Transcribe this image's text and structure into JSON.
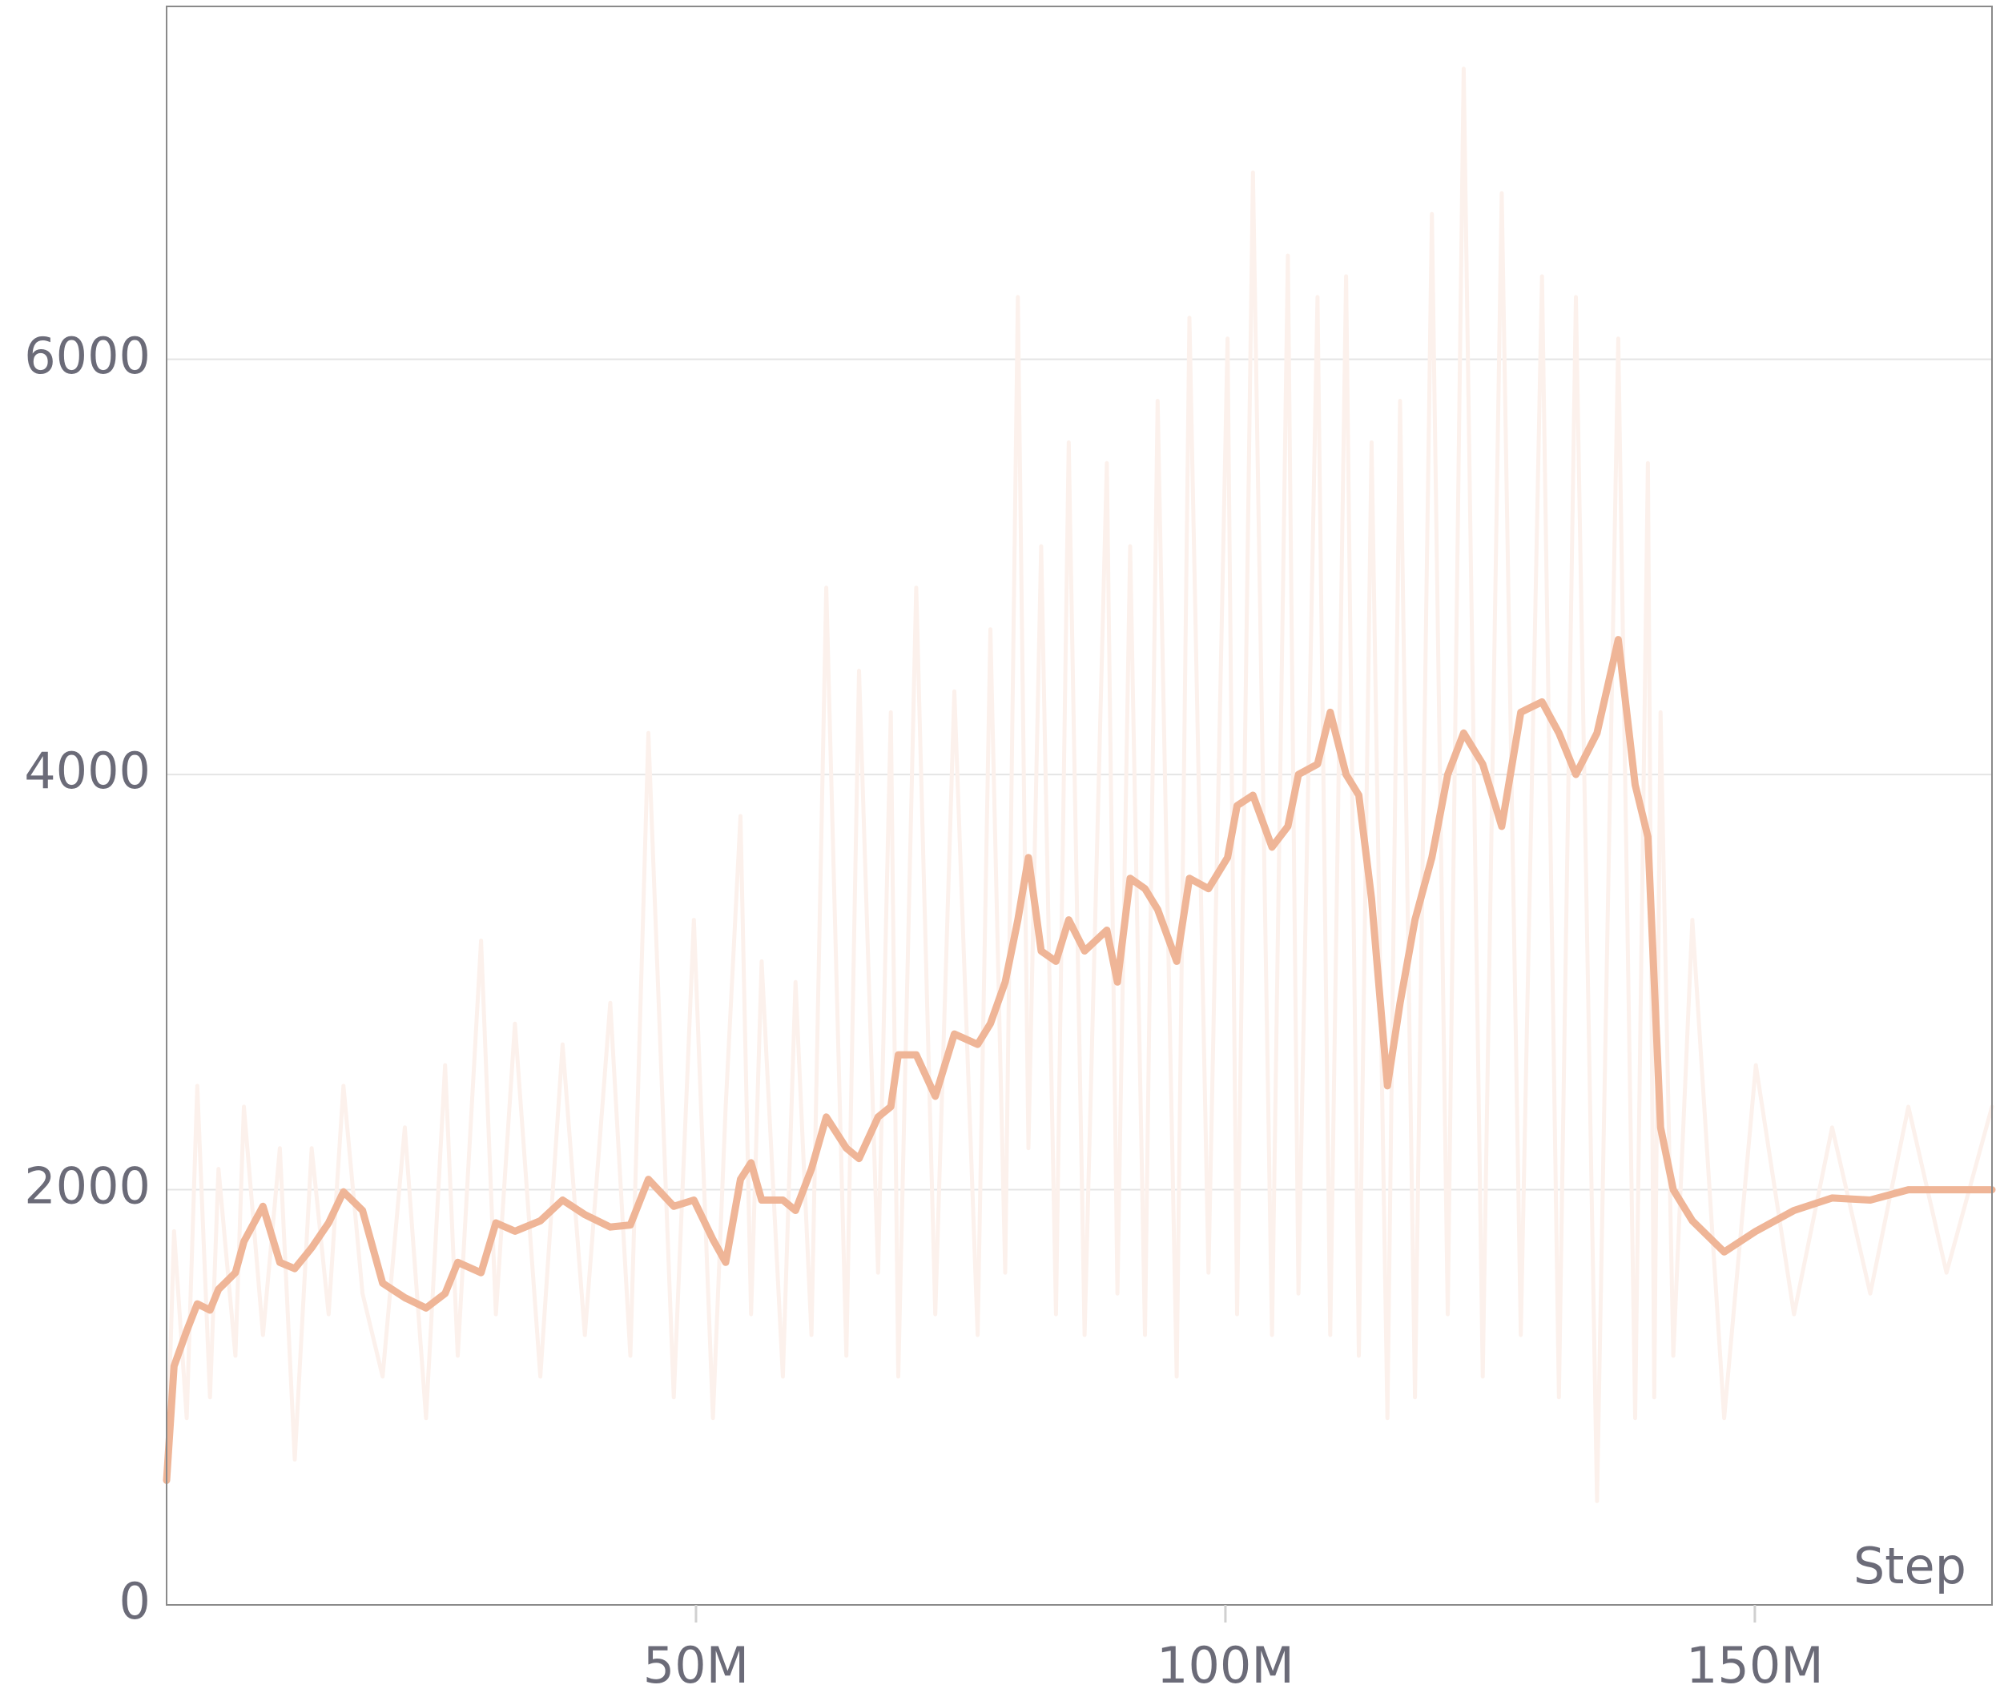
{
  "chart_data": {
    "type": "line",
    "xlabel": "Step",
    "x": [
      0,
      700000,
      1900000,
      2900000,
      4100000,
      4900000,
      6500000,
      7300000,
      9100000,
      10700000,
      12100000,
      13700000,
      15300000,
      16700000,
      18500000,
      20400000,
      22500000,
      24500000,
      26300000,
      27500000,
      29700000,
      31100000,
      32900000,
      35300000,
      37400000,
      39500000,
      41900000,
      43800000,
      45500000,
      47900000,
      49800000,
      51600000,
      52800000,
      54200000,
      55200000,
      56200000,
      58200000,
      59400000,
      60900000,
      62300000,
      64200000,
      65400000,
      67200000,
      68400000,
      69100000,
      70800000,
      72600000,
      74400000,
      76600000,
      77800000,
      79200000,
      80400000,
      81400000,
      82600000,
      84000000,
      85200000,
      86700000,
      88800000,
      89800000,
      91000000,
      92400000,
      93600000,
      95400000,
      96600000,
      98400000,
      100200000,
      101100000,
      102600000,
      104400000,
      105900000,
      106900000,
      108700000,
      109900000,
      111400000,
      112600000,
      113800000,
      115300000,
      116500000,
      117900000,
      119500000,
      121000000,
      122500000,
      124300000,
      126100000,
      127900000,
      129900000,
      131500000,
      133100000,
      135100000,
      137100000,
      138700000,
      139900000,
      140500000,
      141100000,
      142300000,
      144100000,
      147100000,
      150100000,
      153700000,
      157300000,
      160900000,
      164500000,
      168100000,
      172400000
    ],
    "series": [
      {
        "color": "#fcf1ec",
        "width": 5,
        "values": [
          600,
          1800,
          900,
          2500,
          1000,
          2100,
          1200,
          2400,
          1300,
          2200,
          700,
          2200,
          1400,
          2500,
          1500,
          1100,
          2300,
          900,
          2600,
          1200,
          3200,
          1400,
          2800,
          1100,
          2700,
          1300,
          2900,
          1200,
          4200,
          1000,
          3300,
          900,
          2400,
          3800,
          1400,
          3100,
          1100,
          3000,
          1300,
          4900,
          1200,
          4500,
          1600,
          4300,
          1100,
          4900,
          1400,
          4400,
          1300,
          4700,
          1600,
          6300,
          2200,
          5100,
          1400,
          5600,
          1300,
          5500,
          1500,
          5100,
          1300,
          5800,
          1100,
          6200,
          1600,
          6100,
          1400,
          6900,
          1300,
          6500,
          1500,
          6300,
          1300,
          6400,
          1200,
          5600,
          900,
          5800,
          1000,
          6700,
          1400,
          7400,
          1100,
          6800,
          1300,
          6400,
          1000,
          6300,
          500,
          6100,
          900,
          5500,
          1000,
          4300,
          1200,
          3300,
          900,
          2600,
          1400,
          2300,
          1500,
          2400,
          1600,
          2400
        ]
      },
      {
        "color": "#efb597",
        "width": 9,
        "values": [
          600,
          1150,
          1320,
          1450,
          1420,
          1520,
          1600,
          1750,
          1920,
          1650,
          1620,
          1720,
          1840,
          1990,
          1900,
          1550,
          1480,
          1430,
          1500,
          1650,
          1600,
          1840,
          1800,
          1850,
          1950,
          1880,
          1820,
          1830,
          2050,
          1920,
          1950,
          1760,
          1650,
          2050,
          2130,
          1950,
          1950,
          1900,
          2100,
          2350,
          2200,
          2150,
          2350,
          2400,
          2650,
          2650,
          2450,
          2750,
          2700,
          2800,
          3000,
          3300,
          3600,
          3150,
          3100,
          3300,
          3150,
          3250,
          3000,
          3500,
          3450,
          3350,
          3100,
          3500,
          3450,
          3600,
          3850,
          3900,
          3650,
          3750,
          4000,
          4050,
          4300,
          4000,
          3900,
          3400,
          2500,
          2900,
          3300,
          3600,
          4000,
          4200,
          4050,
          3750,
          4300,
          4350,
          4200,
          4000,
          4200,
          4650,
          3950,
          3700,
          3000,
          2300,
          2000,
          1850,
          1700,
          1800,
          1900,
          1960,
          1950,
          2000,
          2000,
          2000
        ]
      }
    ],
    "xlim": [
      0,
      172400000
    ],
    "ylim": [
      0,
      7700
    ],
    "xticks": [
      {
        "value": 50000000,
        "label": "50M"
      },
      {
        "value": 100000000,
        "label": "100M"
      },
      {
        "value": 150000000,
        "label": "150M"
      }
    ],
    "yticks": [
      0,
      2000,
      4000,
      6000
    ],
    "grid": true
  }
}
